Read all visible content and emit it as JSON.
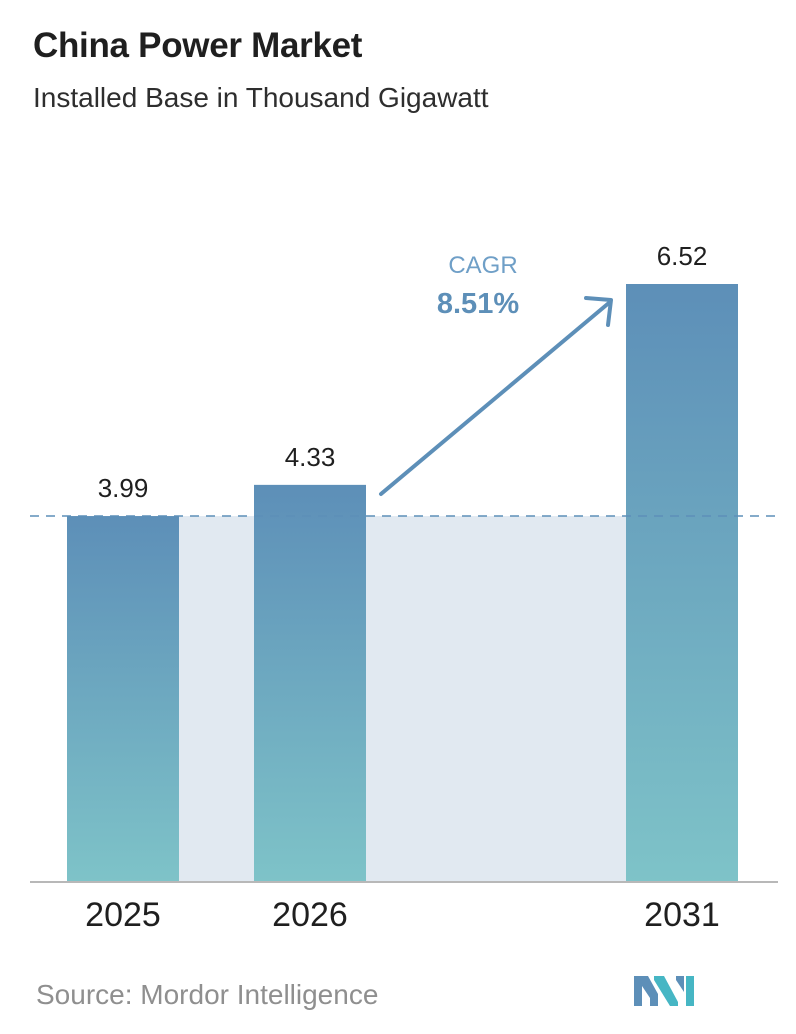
{
  "header": {
    "title": "China Power Market",
    "subtitle": "Installed Base in Thousand Gigawatt"
  },
  "chart_data": {
    "type": "bar",
    "title": "China Power Market",
    "subtitle": "Installed Base in Thousand Gigawatt",
    "xlabel": "",
    "ylabel": "",
    "categories": [
      "2025",
      "2026",
      "2031"
    ],
    "values": [
      3.99,
      4.33,
      6.52
    ],
    "value_labels": [
      "3.99",
      "4.33",
      "6.52"
    ],
    "ylim": [
      0,
      6.52
    ],
    "grid": false,
    "legend": "none",
    "annotation": {
      "label": "CAGR",
      "value": "8.51%"
    },
    "colors": {
      "bar_top": "#5d8fb8",
      "bar_bottom": "#7ec3c8",
      "band": "#e1e9f1",
      "arrow": "#5d8fb8",
      "cagr_label": "#6f9fc7",
      "cagr_value": "#5d8fb8",
      "axis": "#b8b8b8",
      "baseline_dash": "#5d8fb8"
    }
  },
  "footer": {
    "source": "Source: Mordor Intelligence",
    "logo_icon": "mordor-intelligence-logo-icon"
  }
}
